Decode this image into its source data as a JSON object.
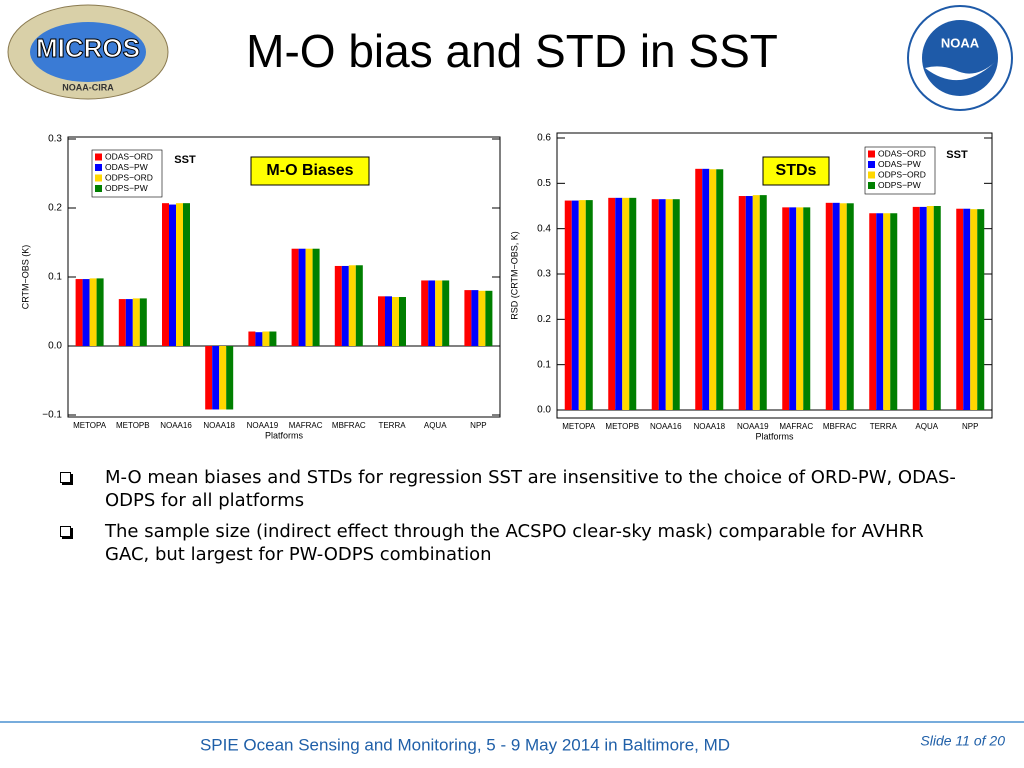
{
  "header": {
    "title": "M-O bias and STD in SST",
    "logo_left": {
      "name": "MICROS",
      "org": "NOAA-CIRA"
    },
    "logo_right": "NOAA"
  },
  "chart_data": [
    {
      "type": "bar",
      "categories": [
        "METOPA",
        "METOPB",
        "NOAA16",
        "NOAA18",
        "NOAA19",
        "MAFRAC",
        "MBFRAC",
        "TERRA",
        "AQUA",
        "NPP"
      ],
      "series": [
        {
          "name": "ODAS−ORD",
          "color": "#ff0000",
          "values": [
            0.097,
            0.068,
            0.207,
            -0.092,
            0.021,
            0.141,
            0.116,
            0.072,
            0.095,
            0.081
          ]
        },
        {
          "name": "ODAS−PW",
          "color": "#0000ff",
          "values": [
            0.097,
            0.068,
            0.205,
            -0.092,
            0.02,
            0.141,
            0.116,
            0.072,
            0.095,
            0.081
          ]
        },
        {
          "name": "ODPS−ORD",
          "color": "#ffd700",
          "values": [
            0.098,
            0.069,
            0.207,
            -0.092,
            0.021,
            0.141,
            0.117,
            0.071,
            0.095,
            0.08
          ]
        },
        {
          "name": "ODPS−PW",
          "color": "#007f00",
          "values": [
            0.098,
            0.069,
            0.207,
            -0.092,
            0.021,
            0.141,
            0.117,
            0.071,
            0.095,
            0.08
          ]
        }
      ],
      "ylim": [
        -0.1,
        0.3
      ],
      "yticks": [
        {
          "value": -0.1,
          "label": "−0.1"
        },
        {
          "value": 0,
          "label": "0.0"
        },
        0.1,
        0.2,
        0.3
      ],
      "xlabel": "Platforms",
      "ylabel": "CRTM−OBS (K)",
      "legend": "upper left",
      "annotations": [
        "SST",
        "M-O Biases"
      ]
    },
    {
      "type": "bar",
      "categories": [
        "METOPA",
        "METOPB",
        "NOAA16",
        "NOAA18",
        "NOAA19",
        "MAFRAC",
        "MBFRAC",
        "TERRA",
        "AQUA",
        "NPP"
      ],
      "series": [
        {
          "name": "ODAS−ORD",
          "color": "#ff0000",
          "values": [
            0.462,
            0.468,
            0.465,
            0.532,
            0.472,
            0.447,
            0.457,
            0.434,
            0.448,
            0.444
          ]
        },
        {
          "name": "ODAS−PW",
          "color": "#0000ff",
          "values": [
            0.462,
            0.468,
            0.465,
            0.532,
            0.472,
            0.447,
            0.457,
            0.434,
            0.448,
            0.444
          ]
        },
        {
          "name": "ODPS−ORD",
          "color": "#ffd700",
          "values": [
            0.463,
            0.468,
            0.465,
            0.531,
            0.474,
            0.447,
            0.456,
            0.434,
            0.45,
            0.443
          ]
        },
        {
          "name": "ODPS−PW",
          "color": "#007f00",
          "values": [
            0.463,
            0.468,
            0.465,
            0.531,
            0.474,
            0.447,
            0.456,
            0.434,
            0.45,
            0.443
          ]
        }
      ],
      "ylim": [
        0,
        0.6
      ],
      "yticks": [
        {
          "value": 0,
          "label": "0.0"
        },
        0.1,
        0.2,
        0.3,
        0.4,
        0.5,
        0.6
      ],
      "xlabel": "Platforms",
      "ylabel": "RSD (CRTM−OBS, K)",
      "legend": "upper right",
      "annotations": [
        "STDs",
        "SST"
      ]
    }
  ],
  "bullets": [
    "M-O mean biases and STDs for regression SST are insensitive to the choice of ORD-PW, ODAS-ODPS for all platforms",
    "The sample size (indirect effect through the ACSPO clear-sky mask) comparable for AVHRR GAC, but largest for PW-ODPS combination"
  ],
  "footer": {
    "text": "SPIE Ocean Sensing and Monitoring, 5 - 9 May 2014 in Baltimore, MD",
    "slide": "Slide 11 of 20"
  }
}
